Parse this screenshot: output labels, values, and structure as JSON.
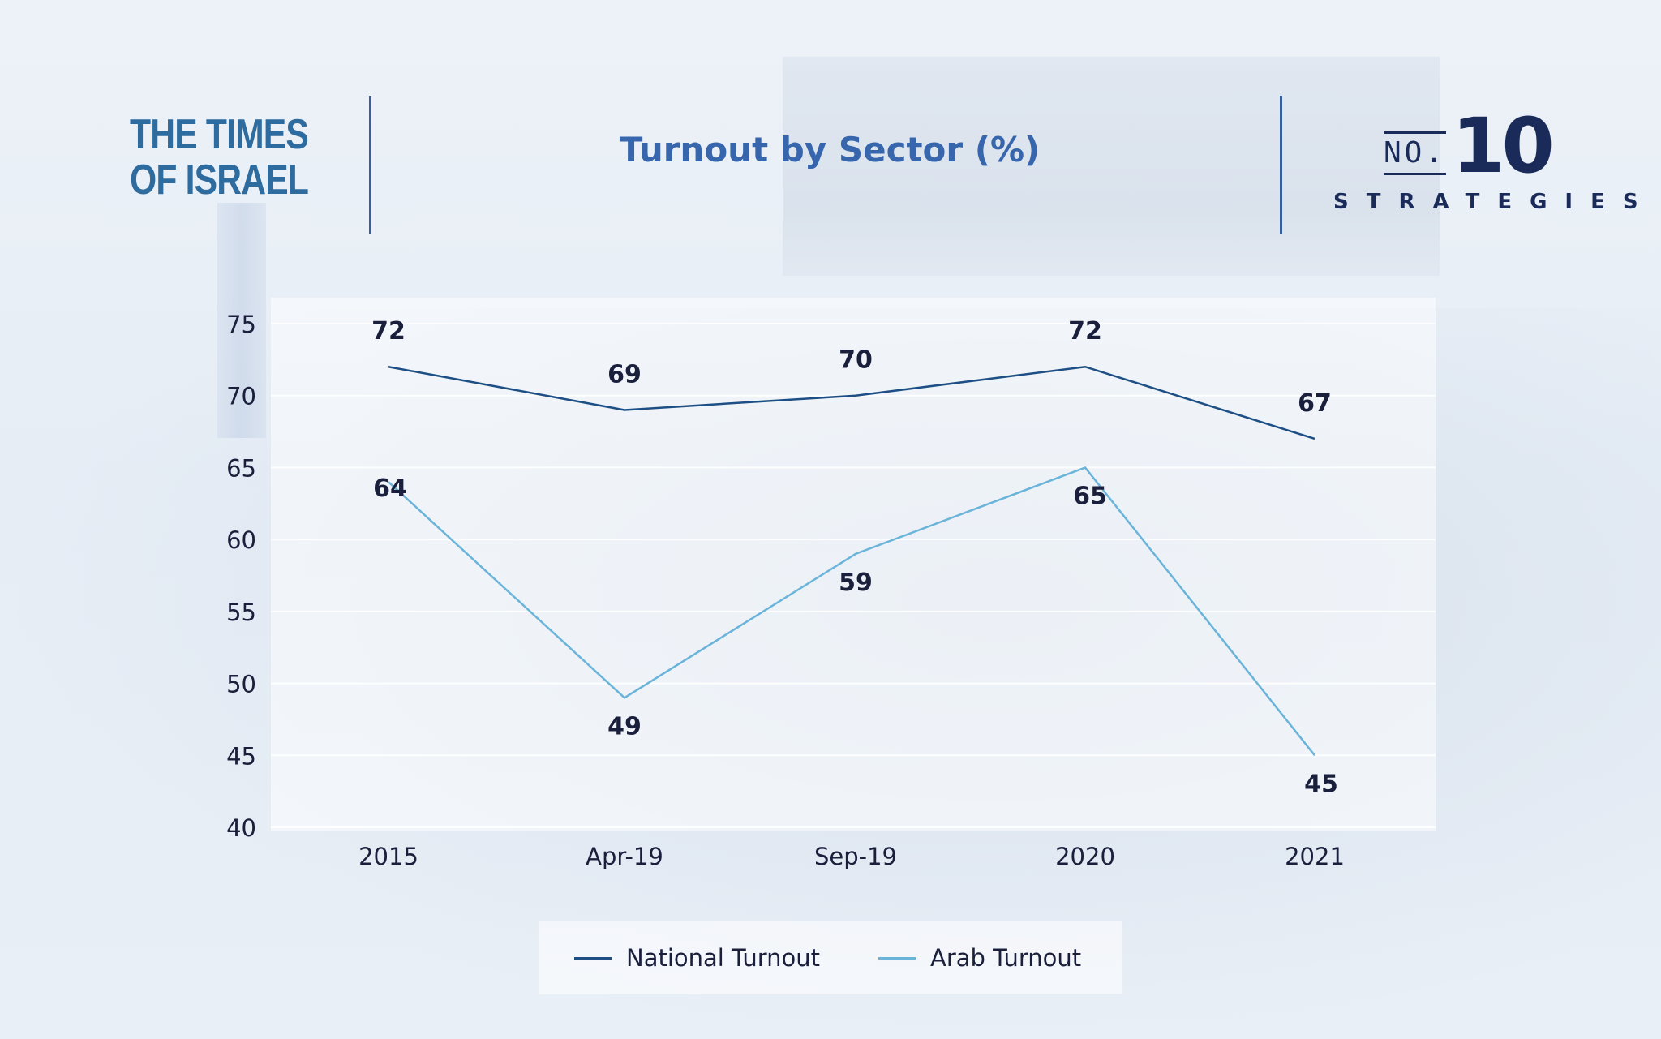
{
  "header": {
    "logo_line1": "THE TIMES",
    "logo_line2": "OF ISRAEL",
    "right_logo_no": "NO.",
    "right_logo_number": "10",
    "right_logo_word": "STRATEGIES"
  },
  "colors": {
    "title": "#3766ad",
    "national": "#1d4f85",
    "arab": "#6ab4da",
    "label": "#1a1f3c"
  },
  "chart_data": {
    "type": "line",
    "title": "Turnout by Sector (%)",
    "categories": [
      "2015",
      "Apr-19",
      "Sep-19",
      "2020",
      "2021"
    ],
    "series": [
      {
        "name": "National Turnout",
        "values": [
          72,
          69,
          70,
          72,
          67
        ]
      },
      {
        "name": "Arab Turnout",
        "values": [
          64,
          49,
          59,
          65,
          45
        ]
      }
    ],
    "ylim": [
      40,
      75
    ],
    "yticks": [
      "40",
      "45",
      "50",
      "55",
      "60",
      "65",
      "70",
      "75"
    ],
    "grid": true,
    "legend_position": "bottom"
  }
}
